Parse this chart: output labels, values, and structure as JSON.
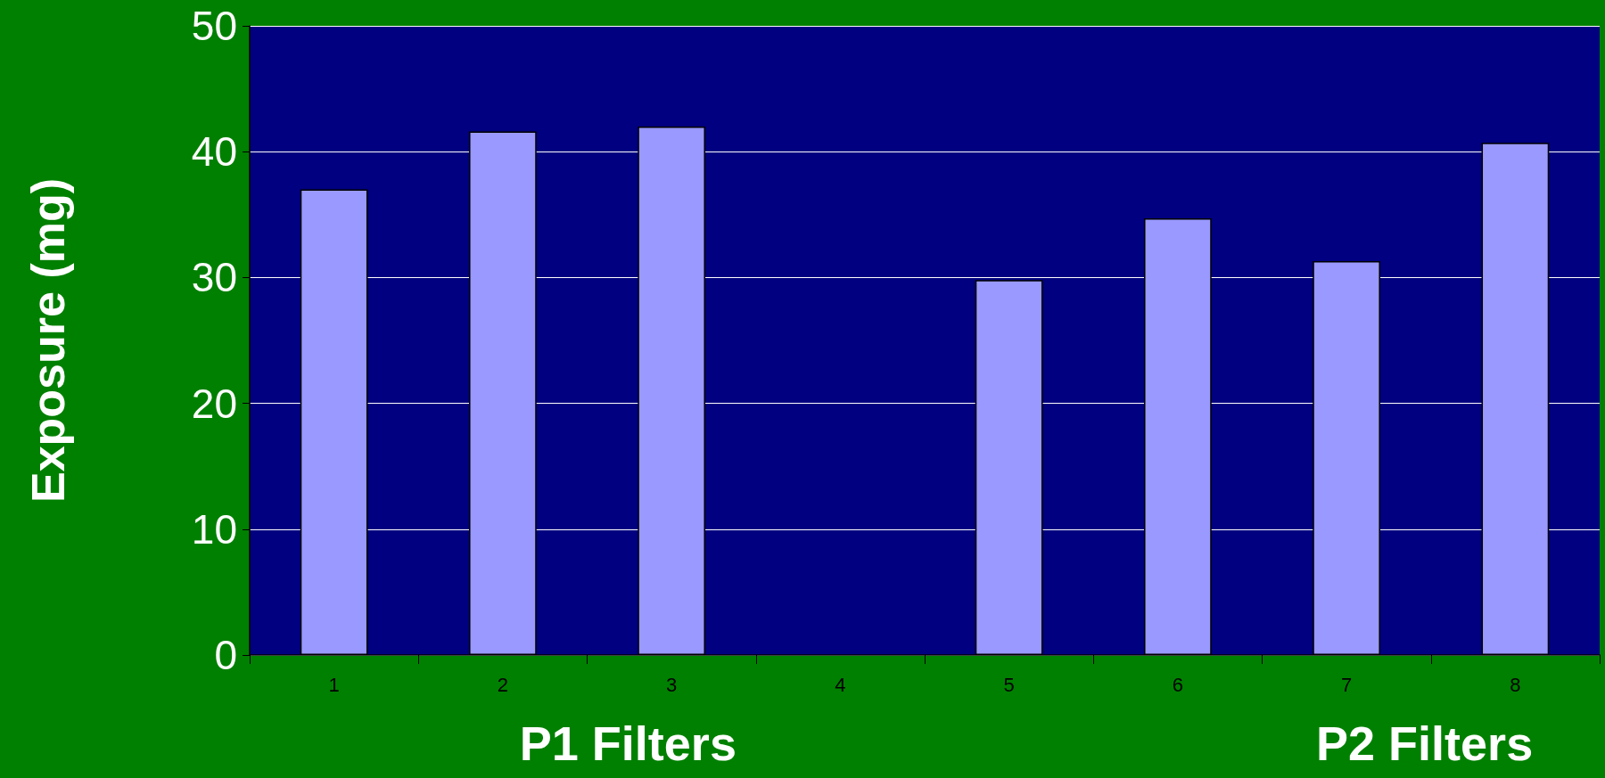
{
  "chart_data": {
    "type": "bar",
    "ylabel": "Exposure (mg)",
    "categories": [
      "1",
      "2",
      "3",
      "4",
      "5",
      "6",
      "7",
      "8"
    ],
    "values": [
      37.0,
      41.6,
      42.0,
      null,
      29.8,
      34.7,
      31.3,
      40.7
    ],
    "color": "#9999ff",
    "ylim": [
      0,
      50
    ],
    "yticks": [
      0,
      10,
      20,
      30,
      40,
      50
    ],
    "grid": "y",
    "annotations": [
      "P1 Filters",
      "P2 Filters"
    ]
  }
}
